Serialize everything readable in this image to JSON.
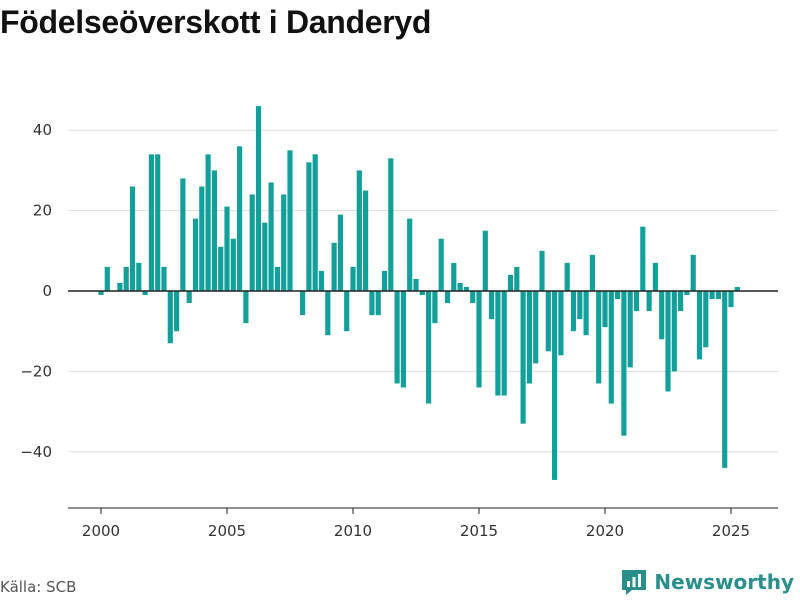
{
  "title": "Födelseöverskott i Danderyd",
  "source": "Källa: SCB",
  "brand": {
    "name": "Newsworthy",
    "icon": "newsworthy-logo-icon"
  },
  "colors": {
    "bar": "#14a09a",
    "grid": "#dddddd",
    "axis": "#222222",
    "brand": "#2a8f8a"
  },
  "chart_data": {
    "type": "bar",
    "x_start": 2000,
    "x_step": 0.25,
    "ylim": [
      -53,
      48
    ],
    "yticks": [
      40,
      20,
      0,
      -20,
      -40
    ],
    "xticks": [
      2000,
      2005,
      2010,
      2015,
      2020,
      2025
    ],
    "ytick_labels": [
      "40",
      "20",
      "0",
      "−20",
      "−40"
    ],
    "xtick_labels": [
      "2000",
      "2005",
      "2010",
      "2015",
      "2020",
      "2025"
    ],
    "grid": true,
    "values": [
      -1,
      6,
      0,
      2,
      6,
      26,
      7,
      -1,
      34,
      34,
      6,
      -13,
      -10,
      28,
      -3,
      18,
      26,
      34,
      30,
      11,
      21,
      13,
      36,
      -8,
      24,
      46,
      17,
      27,
      6,
      24,
      35,
      0,
      -6,
      32,
      34,
      5,
      -11,
      12,
      19,
      -10,
      6,
      30,
      25,
      -6,
      -6,
      5,
      33,
      -23,
      -24,
      18,
      3,
      -1,
      -28,
      -8,
      13,
      -3,
      7,
      2,
      1,
      -3,
      -24,
      15,
      -7,
      -26,
      -26,
      4,
      6,
      -33,
      -23,
      -18,
      10,
      -15,
      -47,
      -16,
      7,
      -10,
      -7,
      -11,
      9,
      -23,
      -9,
      -28,
      -2,
      -36,
      -19,
      -5,
      16,
      -5,
      7,
      -12,
      -25,
      -20,
      -5,
      -1,
      9,
      -17,
      -14,
      -2,
      -2,
      -44,
      -4,
      1
    ]
  }
}
